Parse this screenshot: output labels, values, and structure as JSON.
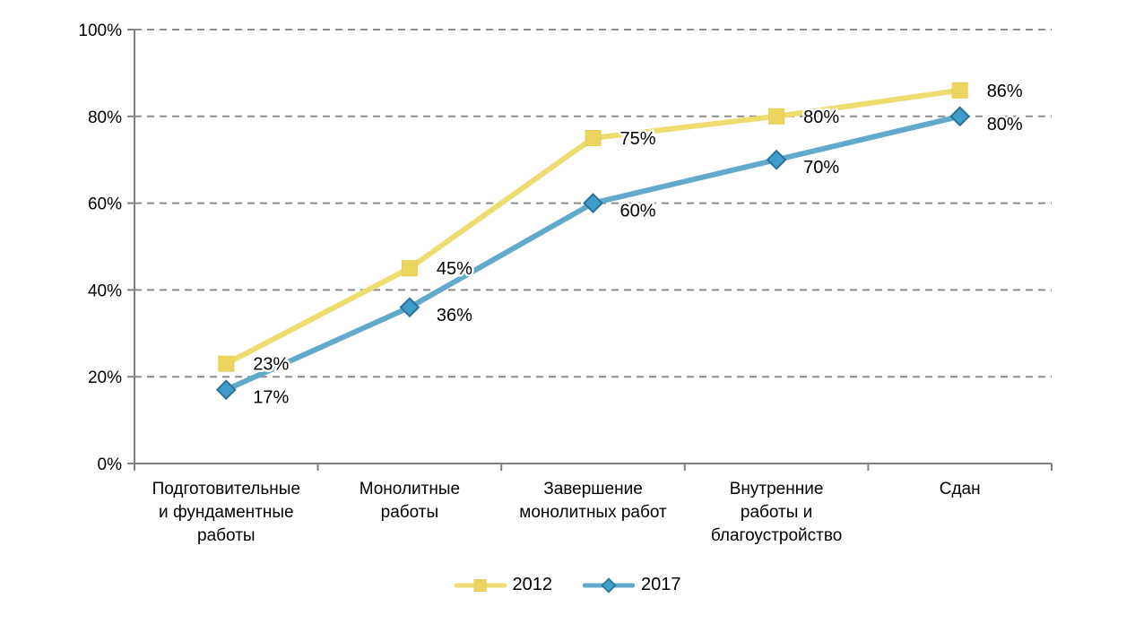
{
  "chart_data": {
    "type": "line",
    "title": "",
    "xlabel": "",
    "ylabel": "",
    "categories": [
      "Подготовительные и фундаментные работы",
      "Монолитные работы",
      "Завершение монолитных работ",
      "Внутренние работы и благоустройство",
      "Сдан"
    ],
    "category_line_breaks": [
      [
        "Подготовительные",
        "и фундаментные",
        "работы"
      ],
      [
        "Монолитные",
        "работы"
      ],
      [
        "Завершение",
        "монолитных работ"
      ],
      [
        "Внутренние",
        "работы и",
        "благоустройство"
      ],
      [
        "Сдан"
      ]
    ],
    "series": [
      {
        "name": "2012",
        "marker": "square",
        "line_color": "#EDDC6F",
        "marker_fill": "#EBD55F",
        "marker_stroke": "#E6CE52",
        "values": [
          23,
          45,
          75,
          80,
          86
        ],
        "labels": [
          "23%",
          "45%",
          "75%",
          "80%",
          "86%"
        ]
      },
      {
        "name": "2017",
        "marker": "diamond",
        "line_color": "#62AACB",
        "marker_fill": "#3F9DC9",
        "marker_stroke": "#2C7199",
        "values": [
          17,
          36,
          60,
          70,
          80
        ],
        "labels": [
          "17%",
          "36%",
          "60%",
          "70%",
          "80%"
        ]
      }
    ],
    "y_axis": {
      "min": 0,
      "max": 100,
      "ticks": [
        {
          "value": 0,
          "label": "0%"
        },
        {
          "value": 20,
          "label": "20%"
        },
        {
          "value": 40,
          "label": "40%"
        },
        {
          "value": 60,
          "label": "60%"
        },
        {
          "value": 80,
          "label": "80%"
        },
        {
          "value": 100,
          "label": "100%"
        }
      ]
    },
    "grid": {
      "show": true,
      "style": "dashed",
      "color": "#8C8C8C"
    },
    "axis_color": "#808080",
    "legend": {
      "position": "bottom",
      "items": [
        "2012",
        "2017"
      ]
    }
  }
}
